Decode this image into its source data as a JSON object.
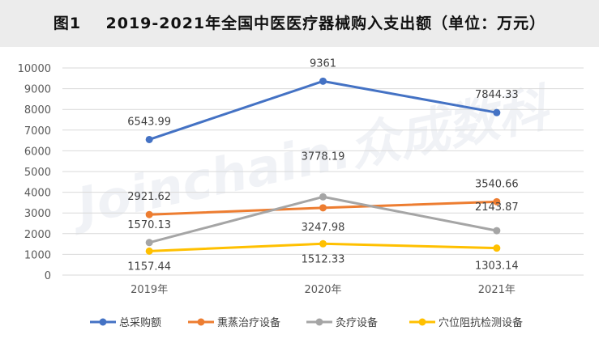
{
  "title": "图1    2019-2021年全国中医医疗器械购入支出额（单位：万元）",
  "watermark": "Joinchain.众成数科",
  "chart_data": {
    "type": "line",
    "categories": [
      "2019年",
      "2020年",
      "2021年"
    ],
    "ylim": [
      0,
      10000
    ],
    "yticks": [
      0,
      1000,
      2000,
      3000,
      4000,
      5000,
      6000,
      7000,
      8000,
      9000,
      10000
    ],
    "grid": true,
    "legend_position": "bottom",
    "series": [
      {
        "name": "总采购额",
        "color": "#4472C4",
        "values": [
          6543.99,
          9361,
          7844.33
        ],
        "labels": [
          "6543.99",
          "9361",
          "7844.33"
        ]
      },
      {
        "name": "熏蒸治疗设备",
        "color": "#ED7D31",
        "values": [
          2921.62,
          3247.98,
          3540.66
        ],
        "labels": [
          "2921.62",
          "3247.98",
          "3540.66"
        ]
      },
      {
        "name": "灸疗设备",
        "color": "#A5A5A5",
        "values": [
          1570.13,
          3778.19,
          2143.87
        ],
        "labels": [
          "1570.13",
          "3778.19",
          "2143.87"
        ]
      },
      {
        "name": "穴位阻抗检测设备",
        "color": "#FFC000",
        "values": [
          1157.44,
          1512.33,
          1303.14
        ],
        "labels": [
          "1157.44",
          "1512.33",
          "1303.14"
        ]
      }
    ]
  }
}
